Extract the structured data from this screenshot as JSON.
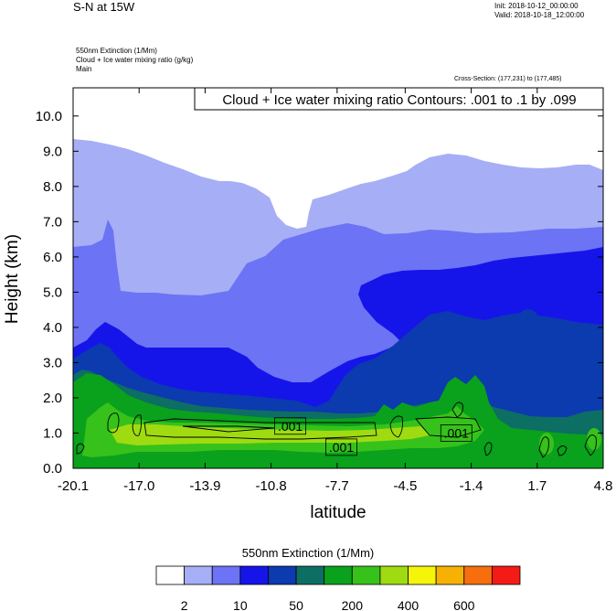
{
  "header": {
    "title": "S-N at 15W",
    "init": "Init: 2018-10-12_00:00:00",
    "valid": "Valid: 2018-10-18_12:00:00",
    "field_lines": [
      "550nm Extinction   (1/Mm)",
      "Cloud + Ice water mixing ratio   (g/kg)",
      "Main"
    ],
    "cross_section": "Cross-Section: (177,231) to (177,485)"
  },
  "chart_data": {
    "type": "contour",
    "title": "",
    "xlabel": "latitude",
    "ylabel": "Height (km)",
    "contour_label": "Cloud + Ice water mixing ratio Contours: .001 to .1 by .099",
    "x_ticks": [
      "-20.1",
      "-17.0",
      "-13.9",
      "-10.8",
      "-7.7",
      "-4.5",
      "-1.4",
      "1.7",
      "4.8"
    ],
    "x_range": [
      -20.1,
      4.8
    ],
    "y_ticks": [
      "0.0",
      "1.0",
      "2.0",
      "3.0",
      "4.0",
      "5.0",
      "6.0",
      "7.0",
      "8.0",
      "9.0",
      "10.0"
    ],
    "y_range": [
      0,
      10.8
    ],
    "contour_value_labels": [
      {
        "text": ".001",
        "x": -9.9,
        "y": 1.2
      },
      {
        "text": ".001",
        "x": -7.5,
        "y": 0.6
      },
      {
        "text": ".001",
        "x": -2.1,
        "y": 1.0
      }
    ],
    "colorbar": {
      "title": "550nm Extinction  (1/Mm)",
      "colors": [
        "#ffffff",
        "#a6aef6",
        "#6c73f4",
        "#1515e9",
        "#0c3aaf",
        "#0d6e63",
        "#0aa11c",
        "#36c21b",
        "#9fdb10",
        "#f5f509",
        "#f7b104",
        "#f66e0d",
        "#f41b17"
      ],
      "labels": [
        {
          "text": "2",
          "index": 1
        },
        {
          "text": "10",
          "index": 3
        },
        {
          "text": "50",
          "index": 5
        },
        {
          "text": "200",
          "index": 7
        },
        {
          "text": "400",
          "index": 9
        },
        {
          "text": "600",
          "index": 11
        }
      ]
    }
  }
}
